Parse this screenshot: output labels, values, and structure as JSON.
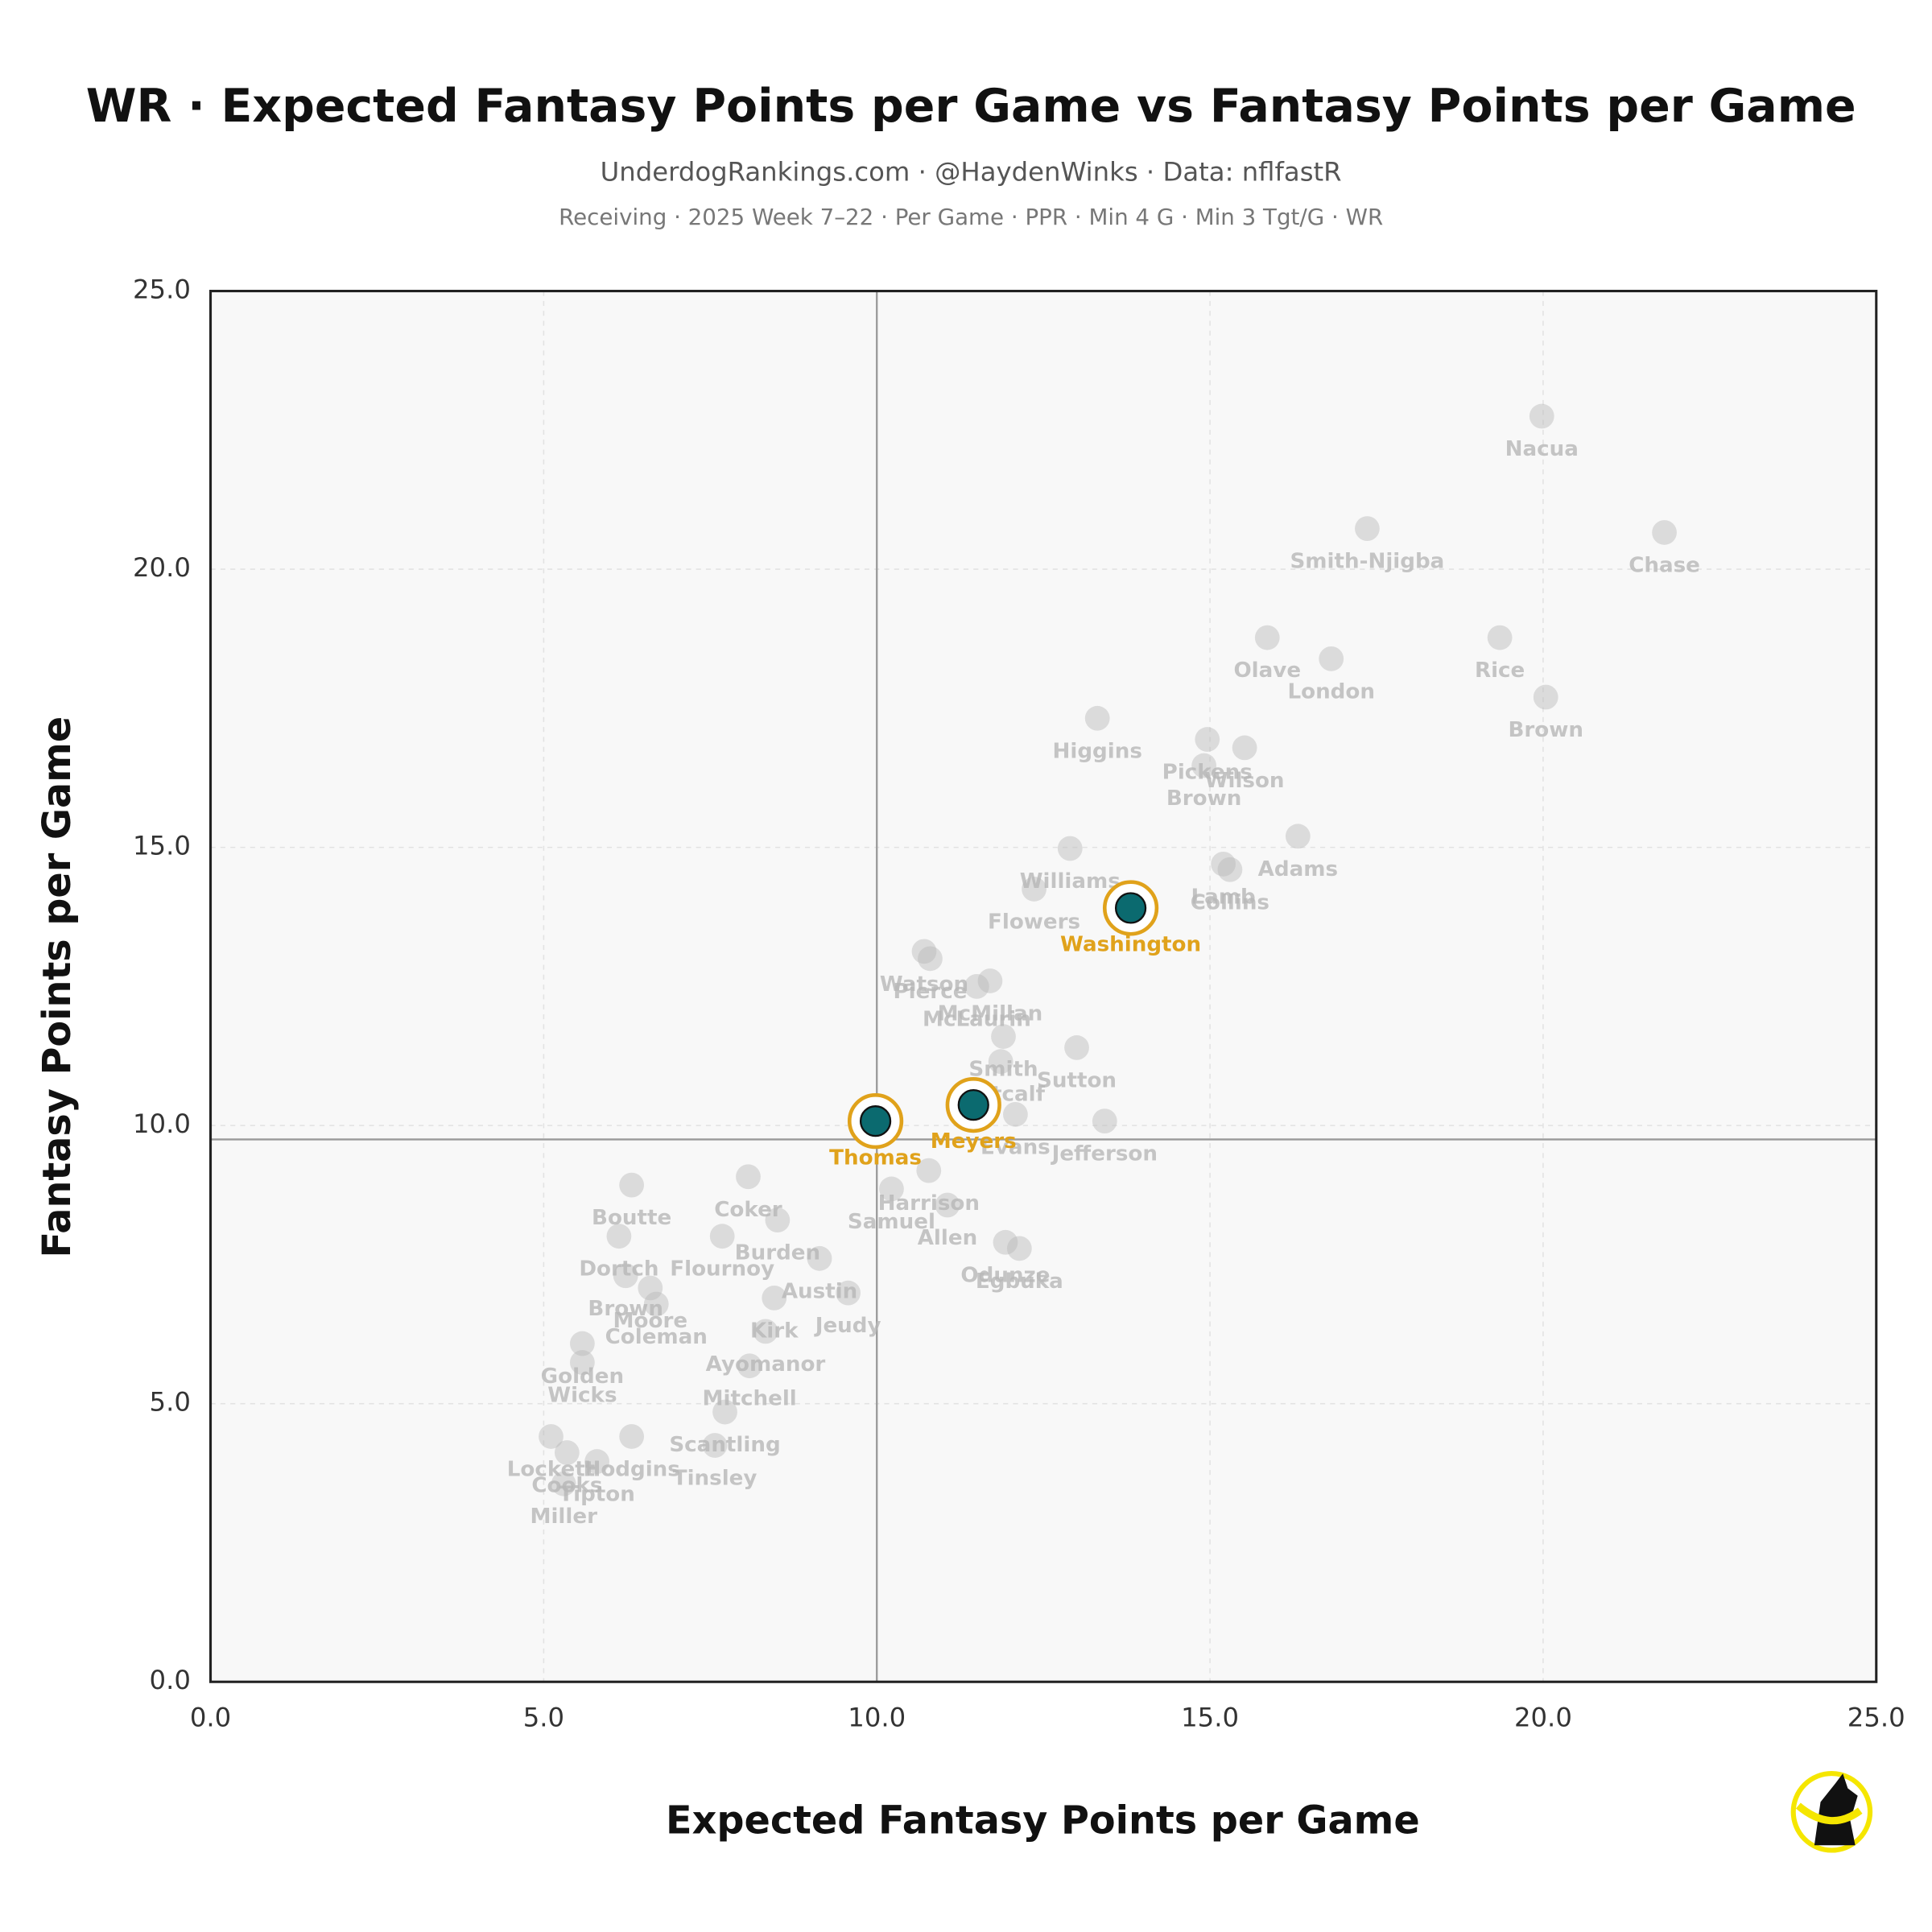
{
  "chart_data": {
    "type": "scatter",
    "title": "WR · Expected Fantasy Points per Game vs Fantasy Points per Game",
    "subtitle": "UnderdogRankings.com · @HaydenWinks · Data: nflfastR",
    "caption": "Receiving · 2025 Week 7–22 · Per Game · PPR · Min 4 G · Min 3 Tgt/G · WR",
    "x_label": "Expected Fantasy Points per Game",
    "y_label": "Fantasy Points per Game",
    "xlim": [
      0,
      25
    ],
    "ylim": [
      0,
      25
    ],
    "xticks": [
      {
        "value": 0,
        "label": "0.0"
      },
      {
        "value": 5,
        "label": "5.0"
      },
      {
        "value": 10,
        "label": "10.0"
      },
      {
        "value": 15,
        "label": "15.0"
      },
      {
        "value": 20,
        "label": "20.0"
      },
      {
        "value": 25,
        "label": "25.0"
      }
    ],
    "yticks": [
      {
        "value": 0,
        "label": "0.0"
      },
      {
        "value": 5,
        "label": "5.0"
      },
      {
        "value": 10,
        "label": "10.0"
      },
      {
        "value": 15,
        "label": "15.0"
      },
      {
        "value": 20,
        "label": "20.0"
      },
      {
        "value": 25,
        "label": "25.0"
      }
    ],
    "grid": true,
    "reference_x": 10,
    "reference_y": 9.75,
    "series": [
      {
        "color": "#b8b8b8",
        "labels": [
          "Nacua",
          "Chase",
          "Smith-Njigba",
          "Olave",
          "London",
          "Rice",
          "Brown",
          "Higgins",
          "Pickens",
          "Wilson",
          "Brown",
          "Adams",
          "Lamb",
          "Collins",
          "Williams",
          "Flowers",
          "Watson",
          "Pierce",
          "McMillan",
          "McLaurin",
          "Smith",
          "Sutton",
          "Metcalf",
          "Evans",
          "Jefferson",
          "Coker",
          "Harrison",
          "Samuel",
          "Allen",
          "Odunze",
          "Egbuka",
          "Boutte",
          "Dortch",
          "Brown",
          "Flournoy",
          "Burden",
          "Austin",
          "Kirk",
          "Jeudy",
          "Moore",
          "Coleman",
          "Ayomanor",
          "Mitchell",
          "Golden",
          "Wicks",
          "Scantling",
          "Tinsley",
          "Hodgins",
          "Lockett",
          "Cooks",
          "Tipton",
          "Miller"
        ],
        "x": [
          19.98,
          21.82,
          17.36,
          15.86,
          16.82,
          19.35,
          20.04,
          13.31,
          14.96,
          15.52,
          14.91,
          16.32,
          15.2,
          15.3,
          12.9,
          12.36,
          10.71,
          10.8,
          11.7,
          11.5,
          11.9,
          13.0,
          11.86,
          12.08,
          13.42,
          8.07,
          10.78,
          10.22,
          11.06,
          11.93,
          12.14,
          6.32,
          6.13,
          6.23,
          7.68,
          8.51,
          9.14,
          8.46,
          9.57,
          6.6,
          6.69,
          8.33,
          8.09,
          5.58,
          5.58,
          7.72,
          7.57,
          6.32,
          5.11,
          5.35,
          5.8,
          5.3
        ],
        "values": [
          22.75,
          20.66,
          20.73,
          18.77,
          18.39,
          18.77,
          17.7,
          17.32,
          16.94,
          16.79,
          16.47,
          15.2,
          14.7,
          14.6,
          14.98,
          14.25,
          13.13,
          13.0,
          12.6,
          12.5,
          11.6,
          11.4,
          11.15,
          10.2,
          10.08,
          9.08,
          9.19,
          8.86,
          8.57,
          7.9,
          7.79,
          8.93,
          8.01,
          7.3,
          8.01,
          8.3,
          7.61,
          6.9,
          6.99,
          7.08,
          6.79,
          6.3,
          5.68,
          6.08,
          5.74,
          4.85,
          4.25,
          4.41,
          4.41,
          4.12,
          3.96,
          3.56
        ]
      },
      {
        "color": "#e0a21b",
        "labels": [
          "Washington",
          "Meyers",
          "Thomas"
        ],
        "x": [
          13.81,
          11.45,
          9.98
        ],
        "values": [
          13.91,
          10.37,
          10.08
        ]
      }
    ]
  }
}
